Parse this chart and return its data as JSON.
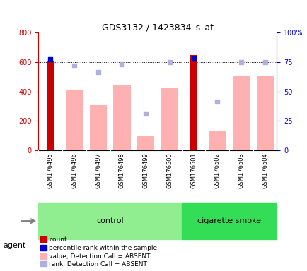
{
  "title": "GDS3132 / 1423834_s_at",
  "samples": [
    "GSM176495",
    "GSM176496",
    "GSM176497",
    "GSM176498",
    "GSM176499",
    "GSM176500",
    "GSM176501",
    "GSM176502",
    "GSM176503",
    "GSM176504"
  ],
  "groups": [
    "control",
    "control",
    "control",
    "control",
    "control",
    "control",
    "cigarette smoke",
    "cigarette smoke",
    "cigarette smoke",
    "cigarette smoke"
  ],
  "count_values": [
    610,
    null,
    null,
    null,
    null,
    null,
    645,
    null,
    null,
    null
  ],
  "percentile_rank": [
    77,
    null,
    null,
    null,
    null,
    null,
    78,
    null,
    null,
    null
  ],
  "absent_value": [
    null,
    405,
    305,
    445,
    95,
    420,
    null,
    135,
    510,
    510
  ],
  "absent_rank": [
    null,
    573,
    533,
    585,
    250,
    597,
    null,
    330,
    597,
    597
  ],
  "ylim_left": [
    0,
    800
  ],
  "ylim_right": [
    0,
    100
  ],
  "yticks_left": [
    0,
    200,
    400,
    600,
    800
  ],
  "yticks_right": [
    0,
    25,
    50,
    75,
    100
  ],
  "yticklabels_right": [
    "0",
    "25",
    "50",
    "75",
    "100%"
  ],
  "color_count": "#cc0000",
  "color_percentile": "#0000cc",
  "color_absent_value": "#ffb0b0",
  "color_absent_rank": "#b0b0dd",
  "color_control_bg": "#90ee90",
  "color_smoke_bg": "#00cc44",
  "color_axis_left": "#cc0000",
  "color_axis_right": "#0000cc",
  "bar_width": 0.4,
  "group_label_control": "control",
  "group_label_smoke": "cigarette smoke",
  "agent_label": "agent",
  "legend_items": [
    "count",
    "percentile rank within the sample",
    "value, Detection Call = ABSENT",
    "rank, Detection Call = ABSENT"
  ]
}
